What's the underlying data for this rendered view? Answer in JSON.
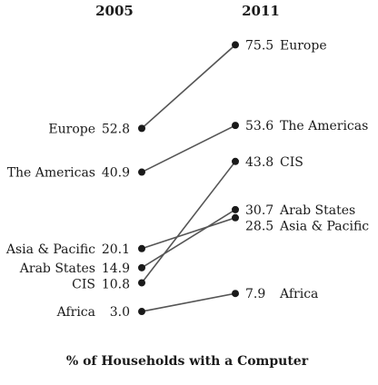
{
  "chart_data": {
    "type": "slope",
    "columns": [
      "2005",
      "2011"
    ],
    "series": [
      {
        "name": "Europe",
        "values": [
          52.8,
          75.5
        ]
      },
      {
        "name": "The Americas",
        "values": [
          40.9,
          53.6
        ]
      },
      {
        "name": "Asia & Pacific",
        "values": [
          20.1,
          28.5
        ]
      },
      {
        "name": "Arab States",
        "values": [
          14.9,
          30.7
        ]
      },
      {
        "name": "CIS",
        "values": [
          10.8,
          43.8
        ]
      },
      {
        "name": "Africa",
        "values": [
          3.0,
          7.9
        ]
      }
    ],
    "value_labels_left": [
      "52.8",
      "40.9",
      "20.1",
      "14.9",
      "10.8",
      "3.0"
    ],
    "value_labels_right": [
      "75.5",
      "53.6",
      "28.5",
      "30.7",
      "43.8",
      "7.9"
    ],
    "title": "% of Households with a Computer",
    "xlabel": "",
    "ylabel": ""
  }
}
